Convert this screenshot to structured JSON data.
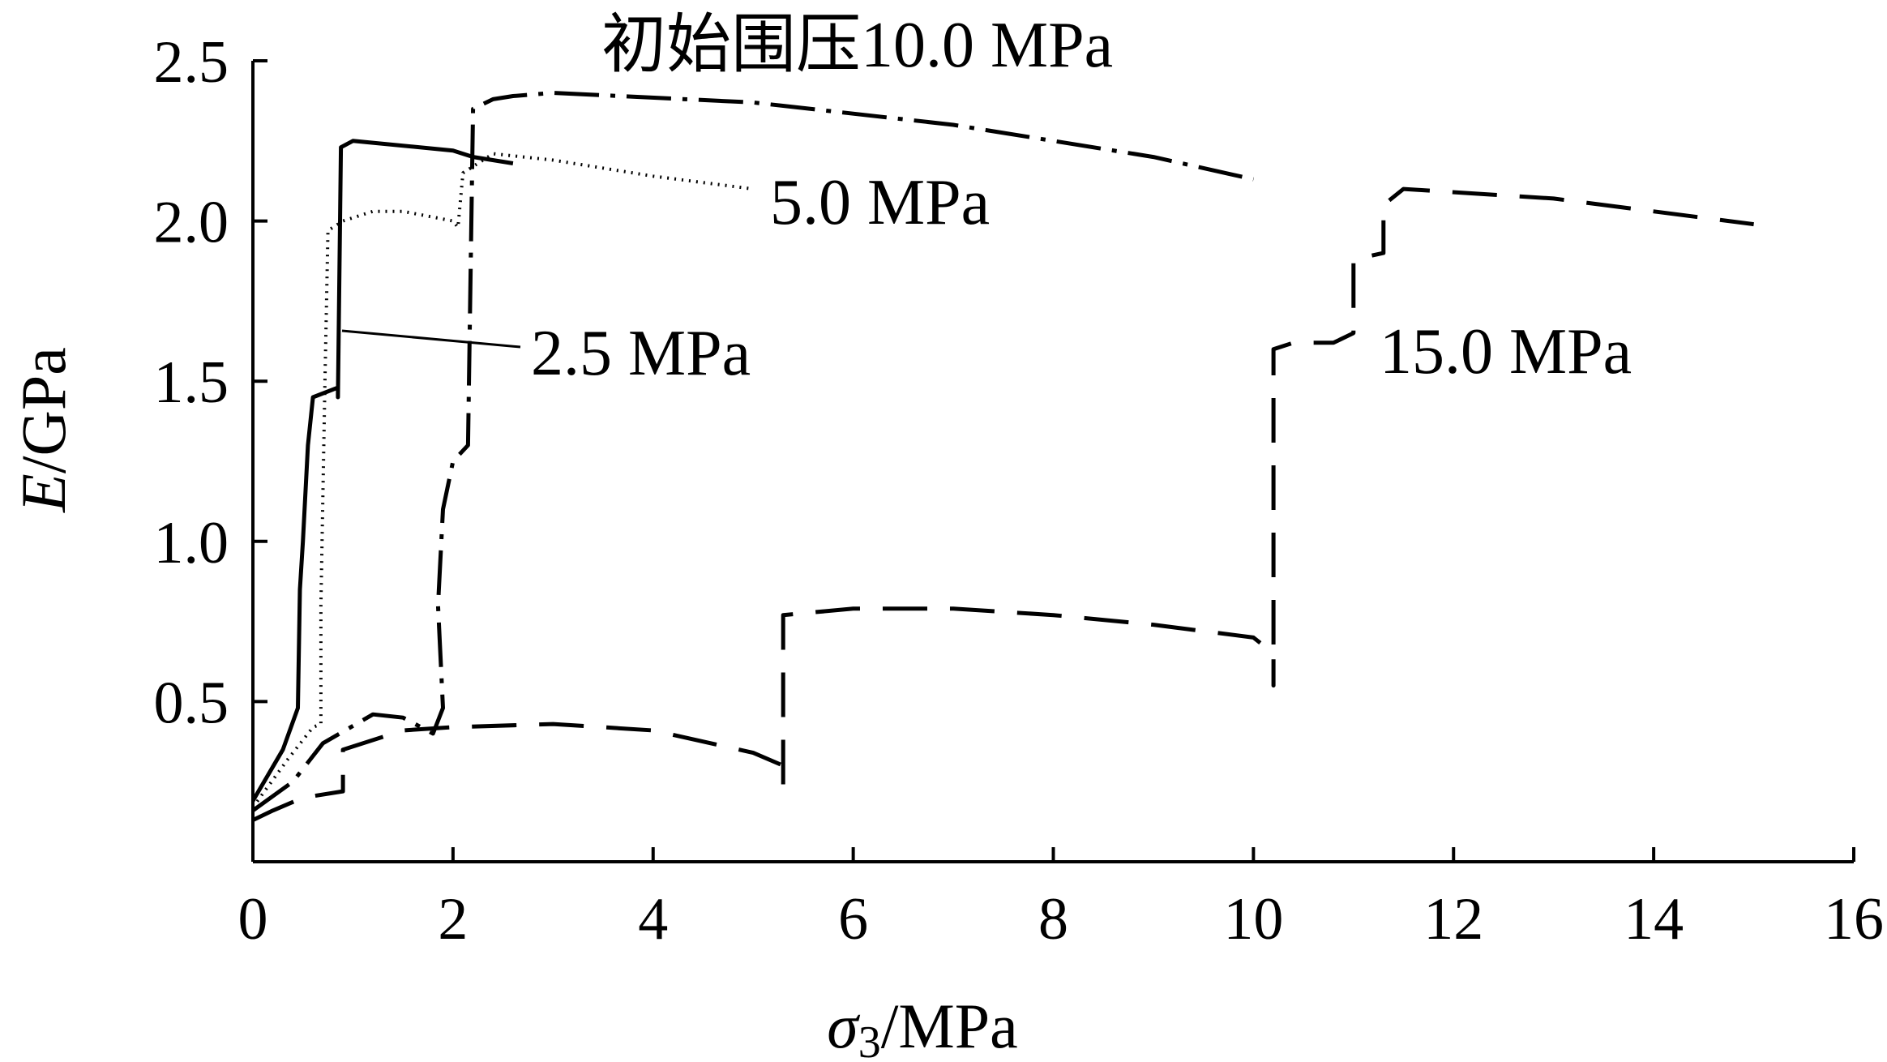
{
  "chart_data": {
    "type": "line",
    "title": "",
    "xlabel": {
      "symbol": "σ",
      "subscript": "3",
      "unit": "/MPa"
    },
    "ylabel": {
      "symbol": "E",
      "unit": "/GPa"
    },
    "xlim": [
      0,
      16
    ],
    "ylim": [
      0,
      2.5
    ],
    "x_ticks": [
      "0",
      "2",
      "4",
      "6",
      "8",
      "10",
      "12",
      "14",
      "16"
    ],
    "y_ticks": [
      "0.5",
      "1.0",
      "1.5",
      "2.0",
      "2.5"
    ],
    "grid": false,
    "legend": "none",
    "series": [
      {
        "name": "2.5 MPa",
        "style": "solid",
        "points": [
          [
            0,
            0.19
          ],
          [
            0.3,
            0.35
          ],
          [
            0.45,
            0.48
          ],
          [
            0.47,
            0.85
          ],
          [
            0.5,
            1.0
          ],
          [
            0.55,
            1.3
          ],
          [
            0.6,
            1.45
          ],
          [
            0.85,
            1.48
          ],
          [
            0.85,
            1.45
          ],
          [
            0.88,
            2.23
          ],
          [
            1.0,
            2.25
          ],
          [
            2.0,
            2.22
          ],
          [
            2.2,
            2.2
          ],
          [
            2.6,
            2.18
          ]
        ]
      },
      {
        "name": "5.0 MPa",
        "style": "dotted",
        "points": [
          [
            0,
            0.17
          ],
          [
            0.35,
            0.32
          ],
          [
            0.6,
            0.42
          ],
          [
            0.68,
            0.43
          ],
          [
            0.68,
            0.8
          ],
          [
            0.72,
            1.5
          ],
          [
            0.75,
            1.97
          ],
          [
            0.9,
            2.0
          ],
          [
            1.2,
            2.03
          ],
          [
            1.5,
            2.03
          ],
          [
            2.0,
            2.0
          ],
          [
            2.05,
            1.98
          ],
          [
            2.1,
            2.15
          ],
          [
            2.4,
            2.21
          ],
          [
            3.0,
            2.19
          ],
          [
            4.0,
            2.14
          ],
          [
            5.0,
            2.1
          ]
        ]
      },
      {
        "name": "初始围压10.0 MPa",
        "style": "dash-dot",
        "points": [
          [
            0,
            0.16
          ],
          [
            0.4,
            0.25
          ],
          [
            0.7,
            0.37
          ],
          [
            1.2,
            0.46
          ],
          [
            1.5,
            0.45
          ],
          [
            1.8,
            0.4
          ],
          [
            1.9,
            0.48
          ],
          [
            1.85,
            0.8
          ],
          [
            1.9,
            1.1
          ],
          [
            2.0,
            1.25
          ],
          [
            2.15,
            1.3
          ],
          [
            2.2,
            2.35
          ],
          [
            2.4,
            2.38
          ],
          [
            2.6,
            2.39
          ],
          [
            3.0,
            2.4
          ],
          [
            5.0,
            2.37
          ],
          [
            7.0,
            2.3
          ],
          [
            9.0,
            2.2
          ],
          [
            10.0,
            2.13
          ]
        ]
      },
      {
        "name": "15.0 MPa",
        "style": "dashed",
        "points": [
          [
            0,
            0.13
          ],
          [
            0.2,
            0.16
          ],
          [
            0.5,
            0.2
          ],
          [
            0.9,
            0.22
          ],
          [
            0.9,
            0.35
          ],
          [
            1.5,
            0.41
          ],
          [
            2.0,
            0.42
          ],
          [
            3.0,
            0.43
          ],
          [
            4.0,
            0.41
          ],
          [
            5.0,
            0.34
          ],
          [
            5.3,
            0.3
          ],
          [
            5.3,
            0.24
          ],
          [
            5.3,
            0.77
          ],
          [
            6.0,
            0.79
          ],
          [
            7.0,
            0.79
          ],
          [
            8.0,
            0.77
          ],
          [
            9.0,
            0.74
          ],
          [
            10.0,
            0.7
          ],
          [
            10.2,
            0.65
          ],
          [
            10.2,
            0.55
          ],
          [
            10.2,
            1.6
          ],
          [
            10.4,
            1.62
          ],
          [
            10.8,
            1.62
          ],
          [
            11.0,
            1.65
          ],
          [
            11.0,
            1.88
          ],
          [
            11.3,
            1.9
          ],
          [
            11.3,
            2.05
          ],
          [
            11.5,
            2.1
          ],
          [
            13.0,
            2.07
          ],
          [
            15.0,
            1.99
          ]
        ]
      }
    ],
    "annotations": {
      "label_2_5": "2.5 MPa",
      "label_5_0": "5.0 MPa",
      "label_10_0": "初始围压10.0 MPa",
      "label_15_0": "15.0 MPa"
    }
  }
}
